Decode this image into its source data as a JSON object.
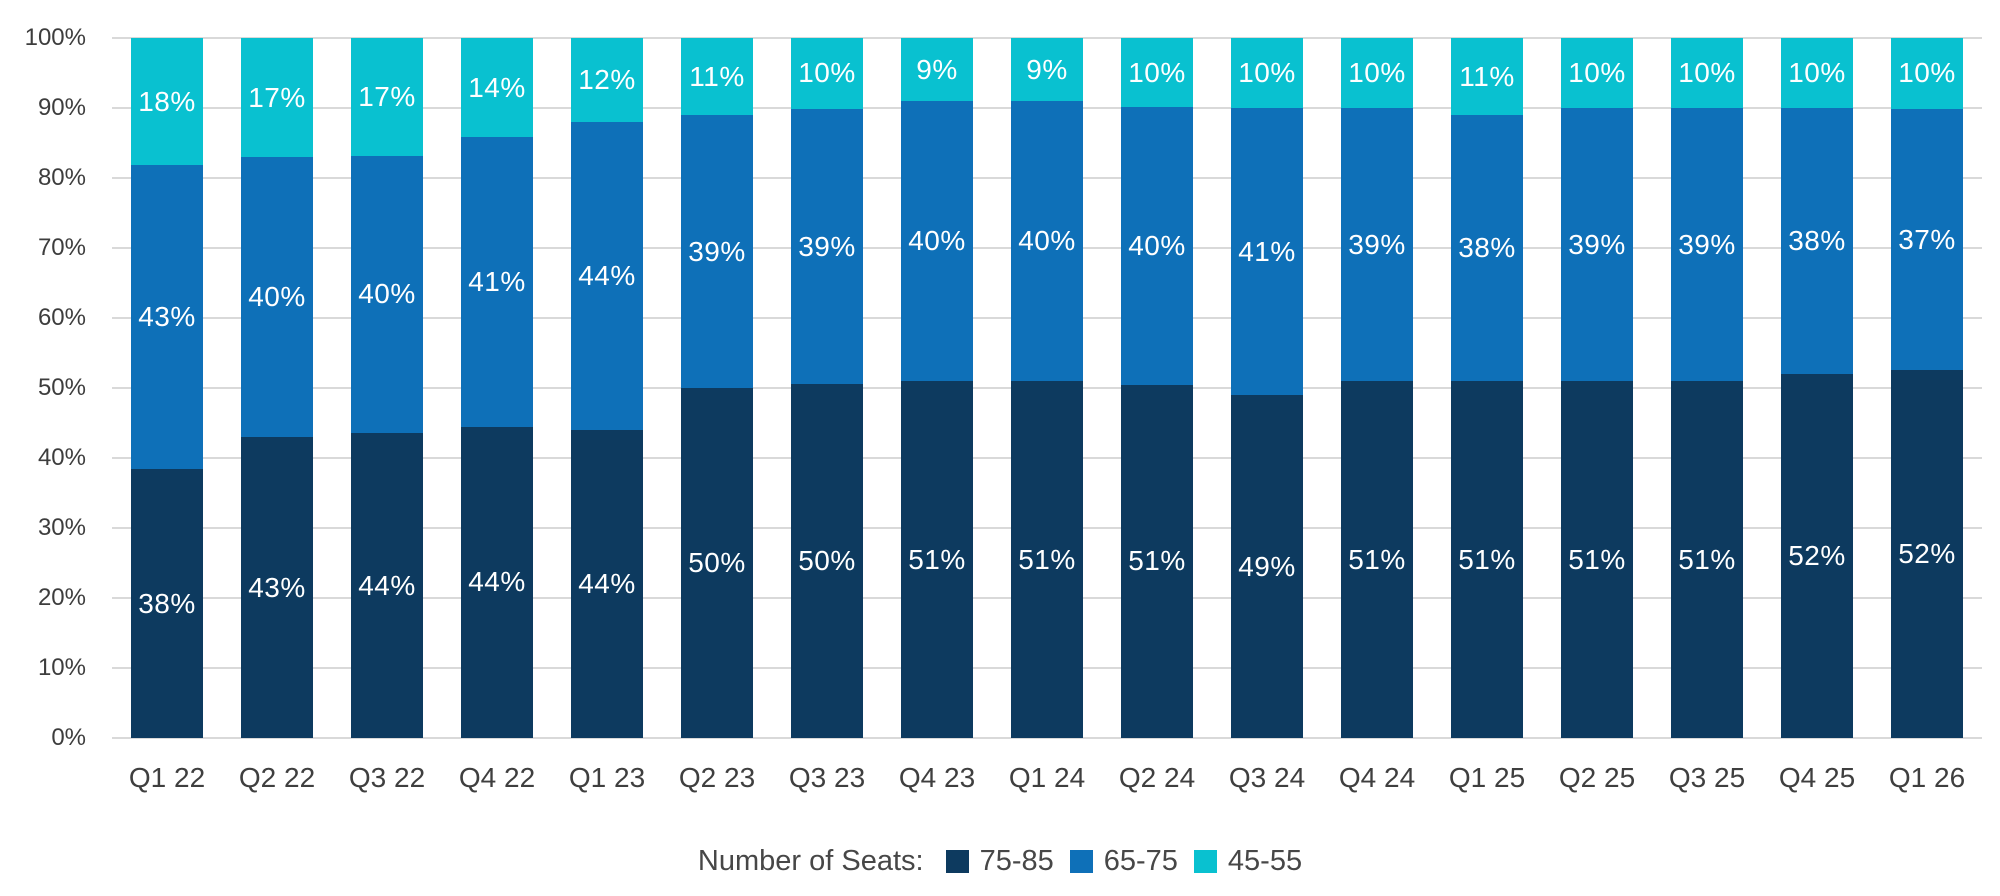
{
  "chart_data": {
    "type": "bar",
    "stacked": true,
    "title": "",
    "xlabel": "",
    "ylabel": "",
    "ylim": [
      0,
      100
    ],
    "grid": true,
    "legend_position": "bottom",
    "legend_title": "Number of Seats:",
    "value_suffix": "%",
    "y_ticks": [
      "0%",
      "10%",
      "20%",
      "30%",
      "40%",
      "50%",
      "60%",
      "70%",
      "80%",
      "90%",
      "100%"
    ],
    "categories": [
      "Q1 22",
      "Q2 22",
      "Q3 22",
      "Q4 22",
      "Q1 23",
      "Q2 23",
      "Q3 23",
      "Q4 23",
      "Q1 24",
      "Q2 24",
      "Q3 24",
      "Q4 24",
      "Q1 25",
      "Q2 25",
      "Q3 25",
      "Q4 25",
      "Q1 26"
    ],
    "series": [
      {
        "name": "75-85",
        "color": "#0d3a5f",
        "values": [
          38,
          43,
          44,
          44,
          44,
          50,
          50,
          51,
          51,
          51,
          49,
          51,
          51,
          51,
          51,
          52,
          52
        ]
      },
      {
        "name": "65-75",
        "color": "#0e70b8",
        "values": [
          43,
          40,
          40,
          41,
          44,
          39,
          39,
          40,
          40,
          40,
          41,
          39,
          38,
          39,
          39,
          38,
          37
        ]
      },
      {
        "name": "45-55",
        "color": "#09c1d0",
        "values": [
          18,
          17,
          17,
          14,
          12,
          11,
          10,
          9,
          9,
          10,
          10,
          10,
          11,
          10,
          10,
          10,
          10
        ]
      }
    ]
  },
  "colors": {
    "background": "#ffffff",
    "gridline": "#d9d9d9",
    "axis_text": "#3d3d3d",
    "legend_text": "#474747",
    "bar_label_text": "#ffffff"
  }
}
